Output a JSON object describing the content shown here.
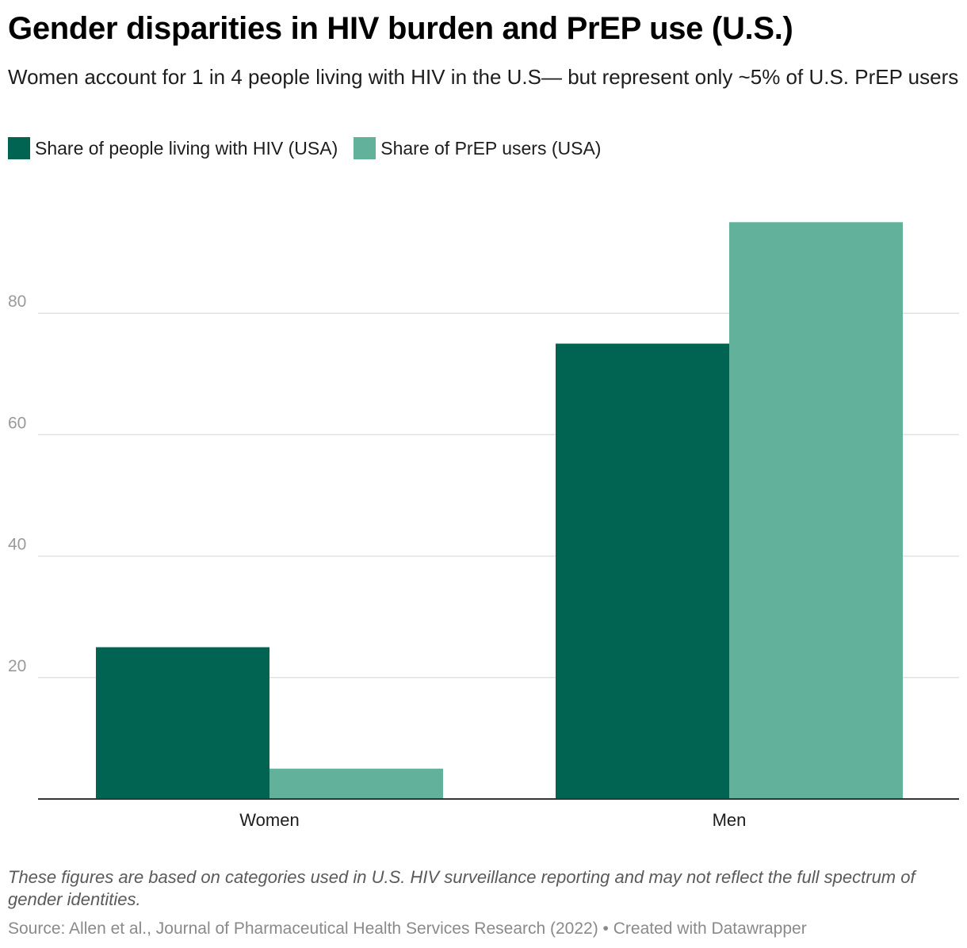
{
  "header": {
    "title": "Gender disparities in HIV burden and PrEP use (U.S.)",
    "subtitle": "Women account for 1 in 4 people living with HIV in the U.S— but represent only ~5% of U.S. PrEP users"
  },
  "legend": [
    {
      "label": "Share of people living with HIV (USA)",
      "color": "#016452"
    },
    {
      "label": "Share of PrEP users (USA)",
      "color": "#61b19b"
    }
  ],
  "chart_data": {
    "type": "bar",
    "categories": [
      "Women",
      "Men"
    ],
    "series": [
      {
        "name": "Share of people living with HIV (USA)",
        "values": [
          25,
          75
        ],
        "color": "#016452"
      },
      {
        "name": "Share of PrEP users (USA)",
        "values": [
          5,
          95
        ],
        "color": "#61b19b"
      }
    ],
    "yticks": [
      20,
      40,
      60,
      80
    ],
    "ylim": [
      0,
      100
    ],
    "grid": true,
    "legend_position": "top-left",
    "xlabel": "",
    "ylabel": ""
  },
  "footer": {
    "note": "These figures are based on categories used in U.S. HIV surveillance reporting and may not reflect the full spectrum of gender identities.",
    "source": "Source: Allen et al., Journal of Pharmaceutical Health Services Research (2022) • Created with Datawrapper"
  }
}
